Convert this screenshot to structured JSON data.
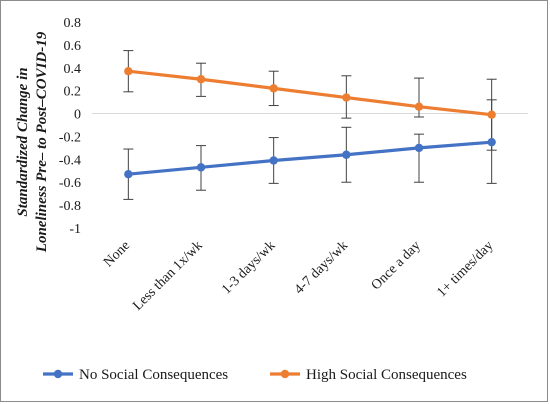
{
  "chart_data": {
    "type": "line",
    "ylabel_lines": [
      "Standardized Change in",
      "Loneliness Pre– to Post–COVID-19"
    ],
    "xlabel": "",
    "ylim": [
      -1,
      0.8
    ],
    "ytick_step": 0.2,
    "y_ticks": [
      "0.8",
      "0.6",
      "0.4",
      "0.2",
      "0",
      "-0.2",
      "-0.4",
      "-0.6",
      "-0.8",
      "-1"
    ],
    "categories": [
      "None",
      "Less than  1x/wk",
      "1-3 days/wk",
      "4-7 days/wk",
      "Once a day",
      "1+ times/day"
    ],
    "legend_position": "bottom",
    "grid": false,
    "series": [
      {
        "name": "No Social Consequences",
        "color": "#4472C4",
        "values": [
          -0.53,
          -0.47,
          -0.41,
          -0.36,
          -0.3,
          -0.25
        ],
        "error_low": [
          -0.75,
          -0.67,
          -0.61,
          -0.6,
          -0.6,
          -0.61
        ],
        "error_high": [
          -0.31,
          -0.28,
          -0.21,
          -0.12,
          -0.18,
          0.12
        ]
      },
      {
        "name": "High Social Consequences",
        "color": "#ED7D31",
        "values": [
          0.37,
          0.3,
          0.22,
          0.14,
          0.06,
          -0.01
        ],
        "error_low": [
          0.19,
          0.15,
          0.07,
          -0.04,
          -0.03,
          -0.32
        ],
        "error_high": [
          0.55,
          0.44,
          0.37,
          0.33,
          0.31,
          0.3
        ]
      }
    ]
  }
}
